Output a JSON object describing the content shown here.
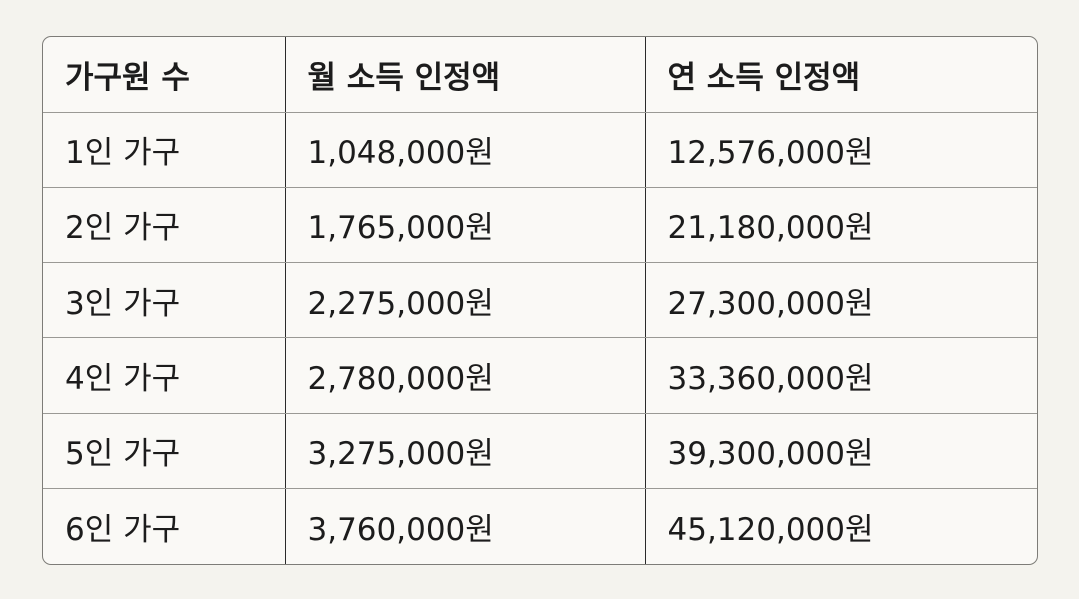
{
  "table": {
    "headers": [
      "가구원 수",
      "월 소득 인정액",
      "연 소득 인정액"
    ],
    "rows": [
      [
        "1인 가구",
        "1,048,000원",
        "12,576,000원"
      ],
      [
        "2인 가구",
        "1,765,000원",
        "21,180,000원"
      ],
      [
        "3인 가구",
        "2,275,000원",
        "27,300,000원"
      ],
      [
        "4인 가구",
        "2,780,000원",
        "33,360,000원"
      ],
      [
        "5인 가구",
        "3,275,000원",
        "39,300,000원"
      ],
      [
        "6인 가구",
        "3,760,000원",
        "45,120,000원"
      ]
    ]
  }
}
